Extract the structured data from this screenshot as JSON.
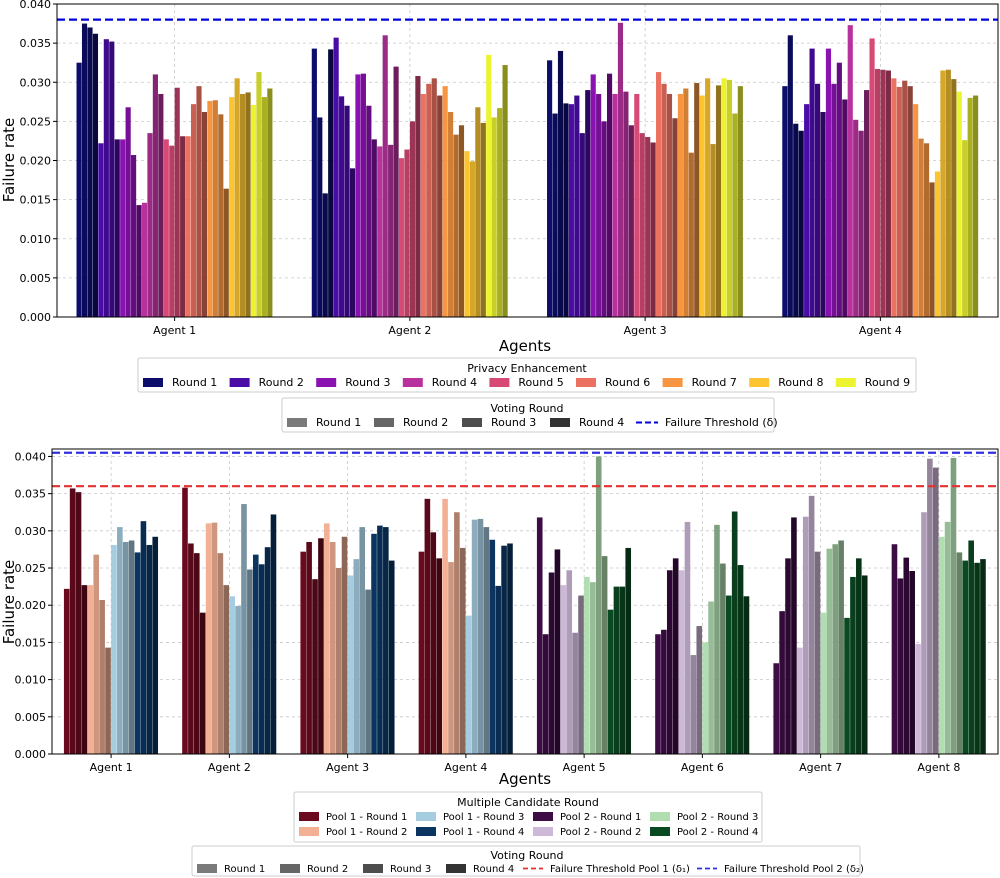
{
  "chart_data": [
    {
      "type": "bar",
      "xlabel": "Agents",
      "ylabel": "Failure rate",
      "ylim": [
        0,
        0.04
      ],
      "yticks": [
        "0.000",
        "0.005",
        "0.010",
        "0.015",
        "0.020",
        "0.025",
        "0.030",
        "0.035",
        "0.040"
      ],
      "grid": true,
      "categories": [
        "Agent 1",
        "Agent 2",
        "Agent 3",
        "Agent 4"
      ],
      "threshold": 0.038,
      "threshold_color": "#0000dd",
      "legend_groups": [
        {
          "title": "Privacy Enhancement",
          "entries": [
            {
              "name": "Round 1",
              "color": "#0d0d6b"
            },
            {
              "name": "Round 2",
              "color": "#4a0ca6"
            },
            {
              "name": "Round 3",
              "color": "#8a12b0"
            },
            {
              "name": "Round 4",
              "color": "#b8329e"
            },
            {
              "name": "Round 5",
              "color": "#d84a76"
            },
            {
              "name": "Round 6",
              "color": "#ec7160"
            },
            {
              "name": "Round 7",
              "color": "#f79540"
            },
            {
              "name": "Round 8",
              "color": "#fcc530"
            },
            {
              "name": "Round 9",
              "color": "#ecf430"
            }
          ]
        },
        {
          "title": "Voting Round",
          "entries": [
            {
              "name": "Round 1",
              "color": "#7a7a7a"
            },
            {
              "name": "Round 2",
              "color": "#666666"
            },
            {
              "name": "Round 3",
              "color": "#4d4d4d"
            },
            {
              "name": "Round 4",
              "color": "#333333"
            },
            {
              "name": "Failure Threshold (δ)",
              "color": "#0000dd",
              "line": "dash"
            }
          ]
        }
      ],
      "groups": [
        {
          "color": "#0d0d6b",
          "values": [
            [
              0.0325,
              0.0375,
              0.037,
              0.0362
            ],
            [
              0.0343,
              0.0255,
              0.0158,
              0.0342
            ],
            [
              0.0328,
              0.026,
              0.034,
              0.0273
            ],
            [
              0.0295,
              0.036,
              0.0247,
              0.0238
            ]
          ]
        },
        {
          "color": "#4a0ca6",
          "values": [
            [
              0.0222,
              0.0355,
              0.0352,
              0.0227
            ],
            [
              0.0357,
              0.0282,
              0.027,
              0.019
            ],
            [
              0.0272,
              0.0283,
              0.0235,
              0.029
            ],
            [
              0.0272,
              0.0343,
              0.0298,
              0.0262
            ]
          ]
        },
        {
          "color": "#8a12b0",
          "values": [
            [
              0.0227,
              0.0268,
              0.0207,
              0.0143
            ],
            [
              0.031,
              0.0311,
              0.027,
              0.0227
            ],
            [
              0.031,
              0.0285,
              0.025,
              0.0311
            ],
            [
              0.0343,
              0.0298,
              0.0325,
              0.0278
            ]
          ]
        },
        {
          "color": "#b8329e",
          "values": [
            [
              0.0146,
              0.0235,
              0.031,
              0.0285
            ],
            [
              0.0218,
              0.036,
              0.022,
              0.032
            ],
            [
              0.0285,
              0.0376,
              0.0288,
              0.0245
            ],
            [
              0.0373,
              0.0252,
              0.0238,
              0.029
            ]
          ]
        },
        {
          "color": "#d84a76",
          "values": [
            [
              0.0227,
              0.0219,
              0.0293,
              0.0231
            ],
            [
              0.0203,
              0.0214,
              0.025,
              0.0308
            ],
            [
              0.0285,
              0.0235,
              0.023,
              0.0223
            ],
            [
              0.0356,
              0.0317,
              0.0316,
              0.0315
            ]
          ]
        },
        {
          "color": "#ec7160",
          "values": [
            [
              0.0231,
              0.0272,
              0.0295,
              0.0262
            ],
            [
              0.0285,
              0.0298,
              0.0305,
              0.0283
            ],
            [
              0.0313,
              0.0298,
              0.0285,
              0.0254
            ],
            [
              0.0305,
              0.0294,
              0.0302,
              0.0295
            ]
          ]
        },
        {
          "color": "#f79540",
          "values": [
            [
              0.0276,
              0.0277,
              0.0259,
              0.0164
            ],
            [
              0.0295,
              0.0262,
              0.0233,
              0.0245
            ],
            [
              0.0285,
              0.0292,
              0.021,
              0.0299
            ],
            [
              0.0272,
              0.0228,
              0.0222,
              0.0172
            ]
          ]
        },
        {
          "color": "#fcc530",
          "values": [
            [
              0.0281,
              0.0305,
              0.0285,
              0.0287
            ],
            [
              0.0212,
              0.0199,
              0.0268,
              0.0248
            ],
            [
              0.0283,
              0.0305,
              0.0221,
              0.0296
            ],
            [
              0.0186,
              0.0315,
              0.0316,
              0.0304
            ]
          ]
        },
        {
          "color": "#ecf430",
          "values": [
            [
              0.0271,
              0.0313,
              0.0281,
              0.0292
            ],
            [
              0.0335,
              0.0255,
              0.0267,
              0.0322
            ],
            [
              0.0305,
              0.0303,
              0.026,
              0.0295
            ],
            [
              0.0288,
              0.0226,
              0.028,
              0.0283
            ]
          ]
        }
      ]
    },
    {
      "type": "bar",
      "xlabel": "Agents",
      "ylabel": "Failure rate",
      "ylim": [
        0,
        0.041
      ],
      "yticks": [
        "0.000",
        "0.005",
        "0.010",
        "0.015",
        "0.020",
        "0.025",
        "0.030",
        "0.035",
        "0.040"
      ],
      "grid": true,
      "categories": [
        "Agent 1",
        "Agent 2",
        "Agent 3",
        "Agent 4",
        "Agent 5",
        "Agent 6",
        "Agent 7",
        "Agent 8"
      ],
      "thresholds": [
        {
          "value": 0.036,
          "color": "#e53030"
        },
        {
          "value": 0.0405,
          "color": "#3030e0"
        }
      ],
      "legend_groups": [
        {
          "title": "Multiple Candidate Round",
          "entries": [
            {
              "name": "Pool 1 - Round 1",
              "color": "#6b0a1e"
            },
            {
              "name": "Pool 1 - Round 2",
              "color": "#f2b094"
            },
            {
              "name": "Pool 1 - Round 3",
              "color": "#a6cce0"
            },
            {
              "name": "Pool 1 - Round 4",
              "color": "#0b3560"
            },
            {
              "name": "Pool 2 - Round 1",
              "color": "#3d0c45"
            },
            {
              "name": "Pool 2 - Round 2",
              "color": "#cdb8d8"
            },
            {
              "name": "Pool 2 - Round 3",
              "color": "#b0deb0"
            },
            {
              "name": "Pool 2 - Round 4",
              "color": "#0a4a22"
            }
          ]
        },
        {
          "title": "Voting Round",
          "entries": [
            {
              "name": "Round 1",
              "color": "#7a7a7a"
            },
            {
              "name": "Round 2",
              "color": "#666666"
            },
            {
              "name": "Round 3",
              "color": "#4d4d4d"
            },
            {
              "name": "Round 4",
              "color": "#333333"
            },
            {
              "name": "Failure Threshold Pool 1 (δ₁)",
              "color": "#e53030",
              "line": "dash"
            },
            {
              "name": "Failure Threshold Pool 2 (δ₂)",
              "color": "#3030e0",
              "line": "dash"
            }
          ]
        }
      ],
      "pool1_groups": [
        {
          "color": "#6b0a1e",
          "values": [
            [
              0.0222,
              0.0357,
              0.0352,
              0.0227
            ],
            [
              0.0358,
              0.0283,
              0.027,
              0.019
            ],
            [
              0.0272,
              0.0285,
              0.0235,
              0.029
            ],
            [
              0.0272,
              0.0343,
              0.0298,
              0.0263
            ]
          ]
        },
        {
          "color": "#f2b094",
          "values": [
            [
              0.0227,
              0.0268,
              0.0207,
              0.0143
            ],
            [
              0.031,
              0.0311,
              0.027,
              0.0227
            ],
            [
              0.031,
              0.0285,
              0.025,
              0.0292
            ],
            [
              0.0343,
              0.0258,
              0.0325,
              0.0277
            ]
          ]
        },
        {
          "color": "#a6cce0",
          "values": [
            [
              0.0281,
              0.0305,
              0.0285,
              0.0287
            ],
            [
              0.0212,
              0.0199,
              0.0336,
              0.0248
            ],
            [
              0.024,
              0.0262,
              0.0305,
              0.0221
            ],
            [
              0.0186,
              0.0315,
              0.0316,
              0.0305
            ]
          ]
        },
        {
          "color": "#0b3560",
          "values": [
            [
              0.0271,
              0.0313,
              0.0281,
              0.0292
            ],
            [
              0.0268,
              0.0255,
              0.0278,
              0.0322
            ],
            [
              0.0296,
              0.0307,
              0.0305,
              0.026
            ],
            [
              0.0288,
              0.0226,
              0.028,
              0.0283
            ]
          ]
        }
      ],
      "pool2_groups": [
        {
          "color": "#3d0c45",
          "values": [
            null,
            null,
            null,
            null,
            [
              0.0318,
              0.0161,
              0.0244,
              0.0275
            ],
            [
              0.0161,
              0.0167,
              0.0247,
              0.0263
            ],
            [
              0.0122,
              0.0192,
              0.0263,
              0.0318
            ],
            [
              0.0282,
              0.0236,
              0.0264,
              0.0246
            ]
          ]
        },
        {
          "color": "#cdb8d8",
          "values": [
            null,
            null,
            null,
            null,
            [
              0.0227,
              0.0247,
              0.0163,
              0.0213
            ],
            [
              0.0247,
              0.0312,
              0.0133,
              0.0172
            ],
            [
              0.0143,
              0.0319,
              0.0347,
              0.0272
            ],
            [
              0.0148,
              0.0325,
              0.0397,
              0.0385
            ]
          ]
        },
        {
          "color": "#b0deb0",
          "values": [
            null,
            null,
            null,
            null,
            [
              0.0238,
              0.0231,
              0.04,
              0.0266
            ],
            [
              0.015,
              0.0205,
              0.0308,
              0.0256
            ],
            [
              0.019,
              0.0276,
              0.0282,
              0.0287
            ],
            [
              0.0292,
              0.0312,
              0.0398,
              0.0271
            ]
          ]
        },
        {
          "color": "#0a4a22",
          "values": [
            null,
            null,
            null,
            null,
            [
              0.0194,
              0.0225,
              0.0225,
              0.0277
            ],
            [
              0.0213,
              0.0326,
              0.0254,
              0.0212
            ],
            [
              0.0183,
              0.0238,
              0.0263,
              0.024
            ],
            [
              0.026,
              0.0287,
              0.0257,
              0.0262
            ]
          ]
        }
      ]
    }
  ]
}
